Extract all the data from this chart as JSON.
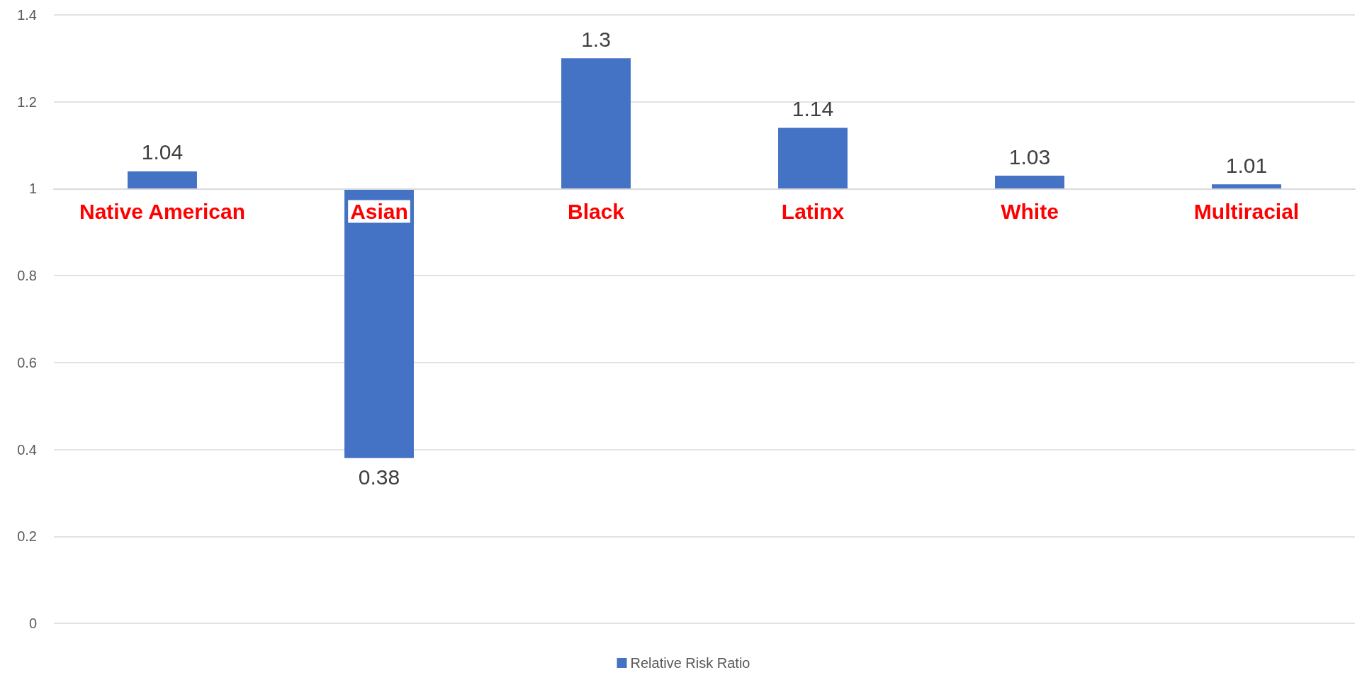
{
  "chart_data": {
    "type": "bar",
    "categories": [
      "Native American",
      "Asian",
      "Black",
      "Latinx",
      "White",
      "Multiracial"
    ],
    "series": [
      {
        "name": "Relative Risk Ratio",
        "color": "#4472c4",
        "values": [
          0.04,
          -0.62,
          0.3,
          0.14,
          0.03,
          0.01
        ],
        "base": [
          1,
          1,
          1,
          1,
          1,
          1
        ],
        "value_labels": [
          "1.04",
          "0.38",
          "1.3",
          "1.14",
          "1.03",
          "1.01"
        ]
      }
    ],
    "ylim": [
      0,
      1.4
    ],
    "yticks": [
      0,
      0.2,
      0.4,
      0.6,
      0.8,
      1,
      1.2,
      1.4
    ],
    "grid": "y",
    "legend": "bottom"
  }
}
